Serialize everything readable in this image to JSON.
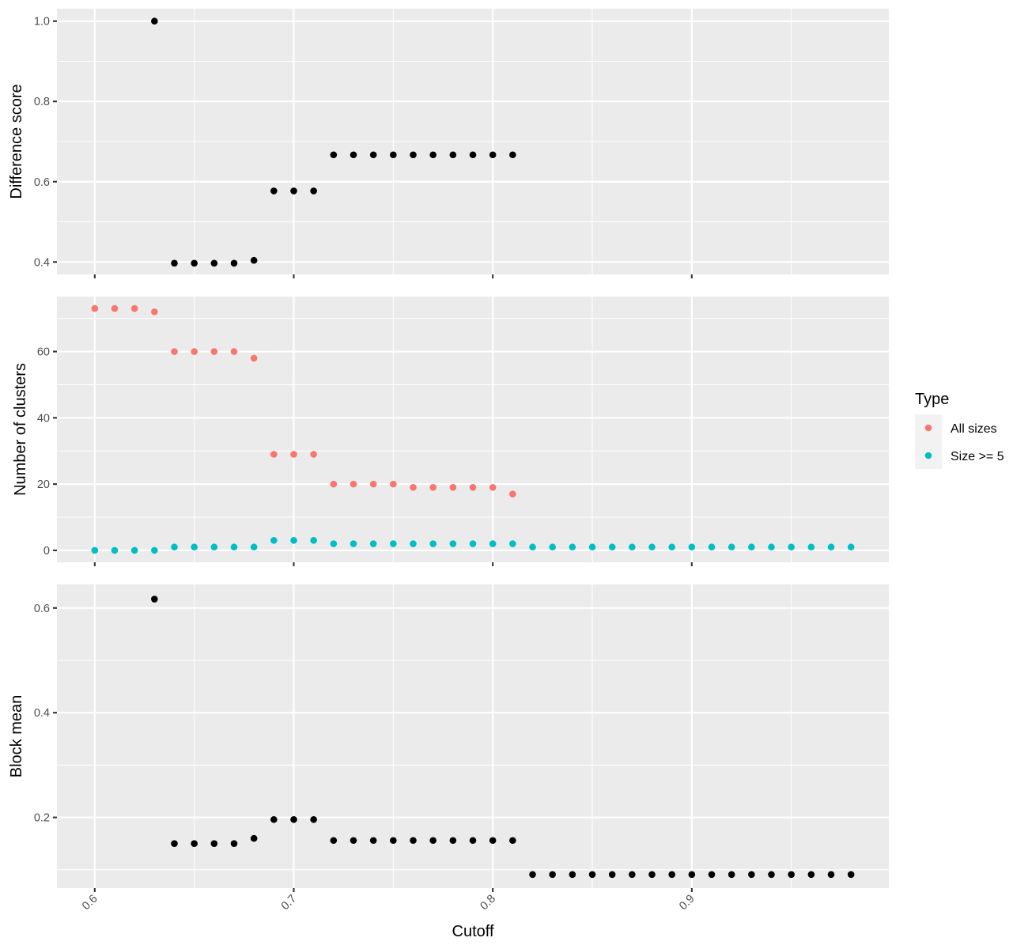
{
  "chart_data": {
    "type": "scatter",
    "x_title": "Cutoff",
    "x_range": [
      0.581,
      0.999
    ],
    "x_ticks": [
      0.6,
      0.7,
      0.8,
      0.9
    ],
    "x_tick_labels": [
      "0.6",
      "0.7",
      "0.8",
      "0.9"
    ],
    "x_tick_label_angle": -45,
    "legend": {
      "title": "Type",
      "position": "right",
      "entries": [
        {
          "label": "All sizes",
          "color": "#F8766D"
        },
        {
          "label": "Size >= 5",
          "color": "#00BFC4"
        }
      ]
    },
    "panels": [
      {
        "id": "difference-score",
        "ylabel": "Difference score",
        "ylim": [
          0.369,
          1.031
        ],
        "y_ticks": [
          0.4,
          0.6,
          0.8,
          1.0
        ],
        "y_tick_labels": [
          "0.4",
          "0.6",
          "0.8",
          "1.0"
        ],
        "series": [
          {
            "name": "",
            "color": "#000000",
            "x": [
              0.63,
              0.64,
              0.65,
              0.66,
              0.67,
              0.68,
              0.69,
              0.7,
              0.71,
              0.72,
              0.73,
              0.74,
              0.75,
              0.76,
              0.77,
              0.78,
              0.79,
              0.8,
              0.81
            ],
            "y": [
              1.0,
              0.397,
              0.397,
              0.397,
              0.397,
              0.404,
              0.577,
              0.577,
              0.577,
              0.667,
              0.667,
              0.667,
              0.667,
              0.667,
              0.667,
              0.667,
              0.667,
              0.667,
              0.667
            ]
          }
        ]
      },
      {
        "id": "number-of-clusters",
        "ylabel": "Number of clusters",
        "ylim": [
          -3.6,
          76.6
        ],
        "y_ticks": [
          0,
          20,
          40,
          60
        ],
        "y_tick_labels": [
          "0",
          "20",
          "40",
          "60"
        ],
        "series": [
          {
            "name": "All sizes",
            "color": "#F8766D",
            "x": [
              0.6,
              0.61,
              0.62,
              0.63,
              0.64,
              0.65,
              0.66,
              0.67,
              0.68,
              0.69,
              0.7,
              0.71,
              0.72,
              0.73,
              0.74,
              0.75,
              0.76,
              0.77,
              0.78,
              0.79,
              0.8,
              0.81
            ],
            "y": [
              73,
              73,
              73,
              72,
              60,
              60,
              60,
              60,
              58,
              29,
              29,
              29,
              20,
              20,
              20,
              20,
              19,
              19,
              19,
              19,
              19,
              17
            ]
          },
          {
            "name": "Size >= 5",
            "color": "#00BFC4",
            "x": [
              0.6,
              0.61,
              0.62,
              0.63,
              0.64,
              0.65,
              0.66,
              0.67,
              0.68,
              0.69,
              0.7,
              0.71,
              0.72,
              0.73,
              0.74,
              0.75,
              0.76,
              0.77,
              0.78,
              0.79,
              0.8,
              0.81,
              0.82,
              0.83,
              0.84,
              0.85,
              0.86,
              0.87,
              0.88,
              0.89,
              0.9,
              0.91,
              0.92,
              0.93,
              0.94,
              0.95,
              0.96,
              0.97,
              0.98
            ],
            "y": [
              0,
              0,
              0,
              0,
              1,
              1,
              1,
              1,
              1,
              3,
              3,
              3,
              2,
              2,
              2,
              2,
              2,
              2,
              2,
              2,
              2,
              2,
              1,
              1,
              1,
              1,
              1,
              1,
              1,
              1,
              1,
              1,
              1,
              1,
              1,
              1,
              1,
              1,
              1
            ]
          }
        ]
      },
      {
        "id": "block-mean",
        "ylabel": "Block mean",
        "ylim": [
          0.065,
          0.645
        ],
        "y_ticks": [
          0.2,
          0.4,
          0.6
        ],
        "y_tick_labels": [
          "0.2",
          "0.4",
          "0.6"
        ],
        "series": [
          {
            "name": "",
            "color": "#000000",
            "x": [
              0.63,
              0.64,
              0.65,
              0.66,
              0.67,
              0.68,
              0.69,
              0.7,
              0.71,
              0.72,
              0.73,
              0.74,
              0.75,
              0.76,
              0.77,
              0.78,
              0.79,
              0.8,
              0.81,
              0.82,
              0.83,
              0.84,
              0.85,
              0.86,
              0.87,
              0.88,
              0.89,
              0.9,
              0.91,
              0.92,
              0.93,
              0.94,
              0.95,
              0.96,
              0.97,
              0.98
            ],
            "y": [
              0.617,
              0.15,
              0.15,
              0.15,
              0.15,
              0.16,
              0.196,
              0.196,
              0.196,
              0.156,
              0.156,
              0.156,
              0.156,
              0.156,
              0.156,
              0.156,
              0.156,
              0.156,
              0.156,
              0.091,
              0.091,
              0.091,
              0.091,
              0.091,
              0.091,
              0.091,
              0.091,
              0.091,
              0.091,
              0.091,
              0.091,
              0.091,
              0.091,
              0.091,
              0.091,
              0.091
            ]
          }
        ]
      }
    ]
  }
}
